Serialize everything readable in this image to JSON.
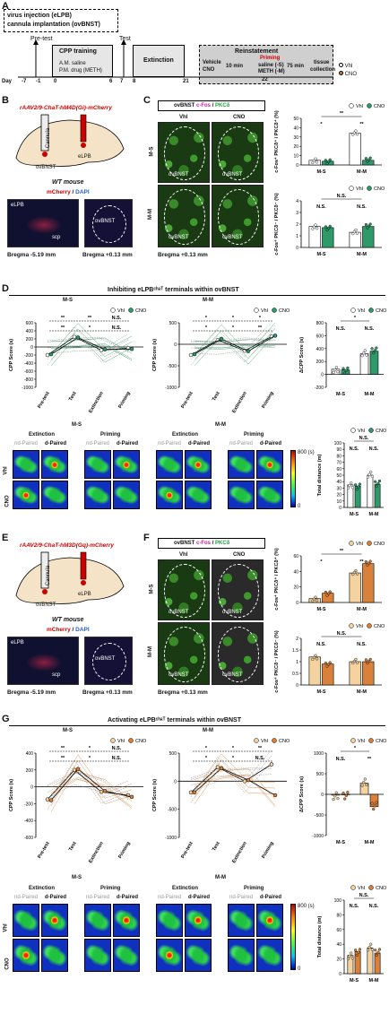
{
  "panel_A": {
    "label": "A",
    "injection_line1": "virus injection (eLPB)",
    "injection_line2": "cannula implantation (ovBNST)",
    "pretest": "Pre-test",
    "test": "Test",
    "cpp_training": "CPP training",
    "am": "A.M. saline",
    "pm": "P.M. drug (METH)",
    "extinction": "Extinction",
    "reinstatement": "Reinstatement",
    "vehicle": "Vehicle",
    "cno": "CNO",
    "ten_min": "10 min",
    "priming": "Priming",
    "priming_detail1": "saline (-S)",
    "priming_detail2": "METH (-M)",
    "seventy_five_min": "75 min",
    "tissue": "tissue",
    "collection": "collection",
    "day_label": "Day",
    "days": [
      "-7",
      "-1",
      "0",
      "6",
      "7",
      "8",
      "21",
      "22"
    ],
    "legend": [
      "Vhl",
      "CNO"
    ]
  },
  "panel_B": {
    "label": "B",
    "construct": "rAAV2/9-ChaT-hM4D(Gi)-mCherry",
    "cannula": "Cannula",
    "elpb": "eLPB",
    "ovbnst": "ovBNST",
    "mouse": "WT mouse",
    "stain_a": "mCherry",
    "stain_b": "DAPI",
    "scp": "scp",
    "bregma1": "Bregma -5.19 mm",
    "bregma2": "Bregma +0.13 mm"
  },
  "panel_C": {
    "label": "C",
    "header_a": "ovBNST",
    "header_b": "c-Fos",
    "header_c": "PKCδ",
    "col1": "Vhl",
    "col2": "CNO",
    "row1": "M-S",
    "row2": "M-M",
    "region": "ovBNST",
    "bregma": "Bregma +0.13 mm"
  },
  "panel_D": {
    "label": "D",
    "title": "Inhibiting eLPBᶜʰᵃᵀ terminals within ovBNST",
    "ms": "M-S",
    "mm": "M-M",
    "extinction": "Extinction",
    "priming": "Priming",
    "nd_paired": "nd-Paired",
    "d_paired": "d-Paired",
    "vhl": "Vhl",
    "cno": "CNO",
    "scale_max": "800 (s)",
    "scale_min": "0"
  },
  "panel_E": {
    "label": "E",
    "construct": "rAAV2/9-ChaT-hM3D(Gq)-mCherry",
    "cannula": "Cannula",
    "elpb": "eLPB",
    "ovbnst": "ovBNST",
    "mouse": "WT mouse",
    "stain_a": "mCherry",
    "stain_b": "DAPI",
    "scp": "scp",
    "bregma1": "Bregma -5.19 mm",
    "bregma2": "Bregma +0.13 mm"
  },
  "panel_F": {
    "label": "F",
    "header_a": "ovBNST",
    "header_b": "c-Fos",
    "header_c": "PKCδ",
    "col1": "Vhl",
    "col2": "CNO",
    "row1": "M-S",
    "row2": "M-M",
    "region": "ovBNST",
    "bregma": "Bregma +0.13 mm"
  },
  "panel_G": {
    "label": "G",
    "title": "Activating eLPBᶜʰᵃᵀ terminals within ovBNST",
    "ms": "M-S",
    "mm": "M-M",
    "extinction": "Extinction",
    "priming": "Priming",
    "nd_paired": "nd-Paired",
    "d_paired": "d-Paired",
    "vhl": "Vhl",
    "cno": "CNO",
    "scale_max": "800 (s)",
    "scale_min": "0"
  },
  "colors": {
    "vhl_fill": "#ffffff",
    "cno_fill_D": "#2e9a6a",
    "cno_fill_G": "#d9813a",
    "vhl_fill_G": "#f5d3a0"
  },
  "chart_data": [
    {
      "id": "C-top",
      "type": "bar",
      "ylabel": "c-Fos⁺ PKCδ⁺ / PKCδ⁺ (%)",
      "categories": [
        "M-S",
        "M-M"
      ],
      "series": [
        {
          "name": "Vhl",
          "values": [
            5,
            34
          ]
        },
        {
          "name": "CNO",
          "values": [
            4,
            5
          ]
        }
      ],
      "ylim": [
        0,
        50
      ],
      "yticks": [
        0,
        10,
        20,
        30,
        40,
        50
      ],
      "sig": [
        "*",
        "**",
        "**"
      ]
    },
    {
      "id": "C-bottom",
      "type": "bar",
      "ylabel": "c-Fos⁺ PKCδ⁻ / PKCδ⁻ (%)",
      "categories": [
        "M-S",
        "M-M"
      ],
      "series": [
        {
          "name": "Vhl",
          "values": [
            1.8,
            1.3
          ]
        },
        {
          "name": "CNO",
          "values": [
            1.7,
            1.8
          ]
        }
      ],
      "ylim": [
        0,
        4
      ],
      "yticks": [
        0,
        1,
        2,
        3,
        4
      ],
      "sig": [
        "N.S.",
        "N.S.",
        "N.S."
      ]
    },
    {
      "id": "D-MS-line",
      "type": "line",
      "ylabel": "CPP Score (s)",
      "categories": [
        "Pre-test",
        "Test",
        "Extinction",
        "Priming"
      ],
      "series": [
        {
          "name": "Vhl",
          "values": [
            -200,
            250,
            -80,
            -30
          ]
        },
        {
          "name": "CNO",
          "values": [
            -180,
            230,
            -60,
            -50
          ]
        }
      ],
      "ylim": [
        -1000,
        600
      ],
      "yticks": [
        -1000,
        -800,
        -600,
        -400,
        -200,
        0,
        200,
        400,
        600
      ],
      "sig": [
        "**",
        "**",
        "**",
        "*",
        "N.S.",
        "N.S."
      ]
    },
    {
      "id": "D-MM-line",
      "type": "line",
      "ylabel": "CPP Score (s)",
      "categories": [
        "Pre-test",
        "Test",
        "Extinction",
        "Priming"
      ],
      "series": [
        {
          "name": "Vhl",
          "values": [
            -250,
            100,
            -150,
            180
          ]
        },
        {
          "name": "CNO",
          "values": [
            -230,
            120,
            -160,
            200
          ]
        }
      ],
      "ylim": [
        -1000,
        500
      ],
      "yticks": [
        -1000,
        -500,
        0,
        500
      ],
      "sig": [
        "*",
        "*",
        "*",
        "*",
        "*",
        "**"
      ]
    },
    {
      "id": "D-delta",
      "type": "bar",
      "ylabel": "ΔCPP Score (s)",
      "categories": [
        "M-S",
        "M-M"
      ],
      "series": [
        {
          "name": "Vhl",
          "values": [
            80,
            320
          ]
        },
        {
          "name": "CNO",
          "values": [
            70,
            360
          ]
        }
      ],
      "ylim": [
        -200,
        800
      ],
      "yticks": [
        -200,
        0,
        200,
        400,
        600,
        800
      ],
      "sig": [
        "N.S.",
        "N.S.",
        "*"
      ]
    },
    {
      "id": "D-distance",
      "type": "bar",
      "ylabel": "Total distance (m)",
      "categories": [
        "M-S",
        "M-M"
      ],
      "series": [
        {
          "name": "Vhl",
          "values": [
            35,
            50
          ]
        },
        {
          "name": "CNO",
          "values": [
            33,
            36
          ]
        }
      ],
      "ylim": [
        0,
        100
      ],
      "yticks": [
        0,
        10,
        20,
        30,
        40,
        50,
        60,
        70,
        80,
        90,
        100
      ],
      "sig": [
        "N.S.",
        "N.S.",
        "N.S."
      ]
    },
    {
      "id": "F-top",
      "type": "bar",
      "ylabel": "c-Fos⁺ PKCδ⁺ / PKCδ⁺ (%)",
      "categories": [
        "M-S",
        "M-M"
      ],
      "series": [
        {
          "name": "Vhl",
          "values": [
            5,
            38
          ]
        },
        {
          "name": "CNO",
          "values": [
            12,
            50
          ]
        }
      ],
      "ylim": [
        0,
        60
      ],
      "yticks": [
        0,
        20,
        40,
        60
      ],
      "sig": [
        "*",
        "**",
        "**"
      ]
    },
    {
      "id": "F-bottom",
      "type": "bar",
      "ylabel": "c-Fos⁺ PKCδ⁻ / PKCδ⁻ (%)",
      "categories": [
        "M-S",
        "M-M"
      ],
      "series": [
        {
          "name": "Vhl",
          "values": [
            1.2,
            1.0
          ]
        },
        {
          "name": "CNO",
          "values": [
            0.9,
            1.0
          ]
        }
      ],
      "ylim": [
        0,
        2.0
      ],
      "yticks": [
        0,
        0.5,
        1.0,
        1.5,
        2.0
      ],
      "sig": [
        "N.S.",
        "N.S.",
        "N.S."
      ]
    },
    {
      "id": "G-MS-line",
      "type": "line",
      "ylabel": "CPP Score (s)",
      "categories": [
        "Pre-test",
        "Test",
        "Extinction",
        "Priming"
      ],
      "series": [
        {
          "name": "Vhl",
          "values": [
            -150,
            200,
            -60,
            -100
          ]
        },
        {
          "name": "CNO",
          "values": [
            -160,
            210,
            -50,
            -120
          ]
        }
      ],
      "ylim": [
        -600,
        400
      ],
      "yticks": [
        -600,
        -400,
        -200,
        0,
        200,
        400
      ],
      "sig": [
        "**",
        "**",
        "*",
        "*",
        "N.S.",
        "N.S."
      ]
    },
    {
      "id": "G-MM-line",
      "type": "line",
      "ylabel": "CPP Score (s)",
      "categories": [
        "Pre-test",
        "Test",
        "Extinction",
        "Priming"
      ],
      "series": [
        {
          "name": "Vhl",
          "values": [
            -200,
            250,
            0,
            300
          ]
        },
        {
          "name": "CNO",
          "values": [
            -200,
            230,
            20,
            -250
          ]
        }
      ],
      "ylim": [
        -1000,
        500
      ],
      "yticks": [
        -1000,
        -500,
        0,
        500
      ],
      "sig": [
        "*",
        "*",
        "*",
        "*",
        "**",
        "N.S."
      ]
    },
    {
      "id": "G-delta",
      "type": "bar",
      "ylabel": "ΔCPP Score (s)",
      "categories": [
        "M-S",
        "M-M"
      ],
      "series": [
        {
          "name": "Vhl",
          "values": [
            -20,
            270
          ]
        },
        {
          "name": "CNO",
          "values": [
            -10,
            -300
          ]
        }
      ],
      "ylim": [
        -1000,
        1000
      ],
      "yticks": [
        -1000,
        -500,
        0,
        500,
        1000
      ],
      "sig": [
        "N.S.",
        "**",
        "*"
      ]
    },
    {
      "id": "G-distance",
      "type": "bar",
      "ylabel": "Total distance (m)",
      "categories": [
        "M-S",
        "M-M"
      ],
      "series": [
        {
          "name": "Vhl",
          "values": [
            25,
            35
          ]
        },
        {
          "name": "CNO",
          "values": [
            30,
            28
          ]
        }
      ],
      "ylim": [
        0,
        100
      ],
      "yticks": [
        0,
        20,
        40,
        60,
        80,
        100
      ],
      "sig": [
        "N.S.",
        "N.S.",
        "N.S."
      ]
    }
  ]
}
